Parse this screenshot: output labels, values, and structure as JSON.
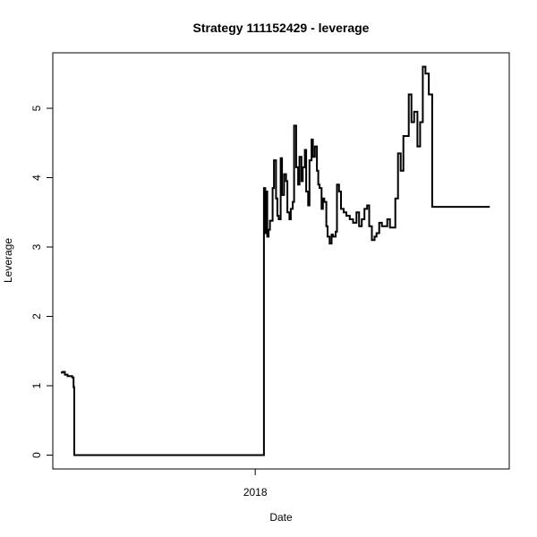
{
  "chart_data": {
    "type": "line",
    "title": "Strategy 111152429 - leverage",
    "xlabel": "Date",
    "ylabel": "Leverage",
    "xlim": [
      "2017-03-05",
      "2019-01-15"
    ],
    "ylim": [
      -0.2,
      5.8
    ],
    "x_ticks": [
      {
        "value": "2018-01-01",
        "label": "2018"
      }
    ],
    "y_ticks": [
      0,
      1,
      2,
      3,
      4,
      5
    ],
    "y_tick_labels": [
      "0",
      "1",
      "2",
      "3",
      "4",
      "5"
    ],
    "grid": false,
    "line_color": "#000000",
    "series": [
      {
        "x": [
          "2017-03-17",
          "2017-03-20",
          "2017-03-23",
          "2017-03-27",
          "2017-04-03",
          "2017-04-05",
          "2017-04-06",
          "2017-04-06",
          "2018-01-13",
          "2018-01-14",
          "2018-01-16",
          "2018-01-17",
          "2018-01-19",
          "2018-01-21",
          "2018-01-23",
          "2018-01-27",
          "2018-01-29",
          "2018-02-01",
          "2018-02-03",
          "2018-02-05",
          "2018-02-08",
          "2018-02-10",
          "2018-02-13",
          "2018-02-16",
          "2018-02-18",
          "2018-02-21",
          "2018-02-23",
          "2018-02-26",
          "2018-02-28",
          "2018-03-03",
          "2018-03-06",
          "2018-03-08",
          "2018-03-11",
          "2018-03-13",
          "2018-03-16",
          "2018-03-18",
          "2018-03-21",
          "2018-03-23",
          "2018-03-26",
          "2018-03-28",
          "2018-03-31",
          "2018-04-03",
          "2018-04-05",
          "2018-04-07",
          "2018-04-10",
          "2018-04-12",
          "2018-04-14",
          "2018-04-17",
          "2018-04-19",
          "2018-04-22",
          "2018-04-25",
          "2018-04-27",
          "2018-05-01",
          "2018-05-03",
          "2018-05-06",
          "2018-05-09",
          "2018-05-13",
          "2018-05-17",
          "2018-05-22",
          "2018-05-27",
          "2018-06-01",
          "2018-06-05",
          "2018-06-09",
          "2018-06-13",
          "2018-06-17",
          "2018-06-20",
          "2018-06-24",
          "2018-06-28",
          "2018-07-01",
          "2018-07-05",
          "2018-07-09",
          "2018-07-13",
          "2018-07-17",
          "2018-07-21",
          "2018-07-25",
          "2018-07-29",
          "2018-08-02",
          "2018-08-06",
          "2018-08-10",
          "2018-08-14",
          "2018-08-18",
          "2018-08-22",
          "2018-08-26",
          "2018-08-31",
          "2018-09-04",
          "2018-09-08",
          "2018-09-12",
          "2018-09-17",
          "2018-09-22",
          "2018-09-27",
          "2018-10-02",
          "2018-10-07",
          "2018-10-12",
          "2018-10-18",
          "2018-10-23",
          "2018-10-28",
          "2018-11-02",
          "2018-11-07",
          "2018-11-11",
          "2018-11-15",
          "2018-11-19",
          "2018-11-22",
          "2018-11-25",
          "2018-11-28",
          "2018-12-01",
          "2018-12-03",
          "2018-12-05",
          "2018-12-07",
          "2018-12-09",
          "2018-12-11",
          "2018-12-12",
          "2018-12-14",
          "2018-12-16",
          "2018-12-17"
        ],
        "values": [
          1.19,
          1.2,
          1.16,
          1.14,
          1.12,
          0.98,
          0.0,
          0.0,
          0.0,
          3.85,
          3.2,
          3.8,
          3.15,
          3.25,
          3.38,
          3.85,
          4.25,
          3.7,
          3.45,
          3.4,
          4.28,
          3.75,
          4.05,
          3.95,
          3.5,
          3.4,
          3.55,
          3.65,
          4.75,
          4.15,
          3.9,
          4.3,
          3.95,
          4.15,
          4.4,
          3.8,
          3.6,
          4.25,
          4.55,
          4.3,
          4.45,
          4.1,
          3.9,
          3.85,
          3.55,
          3.7,
          3.65,
          3.3,
          3.15,
          3.05,
          3.18,
          3.15,
          3.22,
          3.9,
          3.8,
          3.55,
          3.5,
          3.45,
          3.4,
          3.35,
          3.5,
          3.3,
          3.4,
          3.55,
          3.6,
          3.3,
          3.1,
          3.15,
          3.2,
          3.35,
          3.3,
          3.3,
          3.4,
          3.28,
          3.28,
          3.7,
          4.35,
          4.1,
          4.6,
          4.6,
          5.2,
          4.8,
          4.95,
          4.45,
          4.8,
          5.6,
          5.5,
          5.2,
          3.58,
          3.58,
          3.58,
          3.58,
          3.58,
          3.58,
          3.58,
          3.58,
          3.58,
          3.58,
          3.58,
          3.58,
          3.58,
          3.58,
          3.58,
          3.58,
          3.58,
          3.58,
          3.58,
          3.58,
          3.58,
          3.58,
          3.58,
          3.58,
          3.58,
          3.58
        ]
      }
    ]
  }
}
